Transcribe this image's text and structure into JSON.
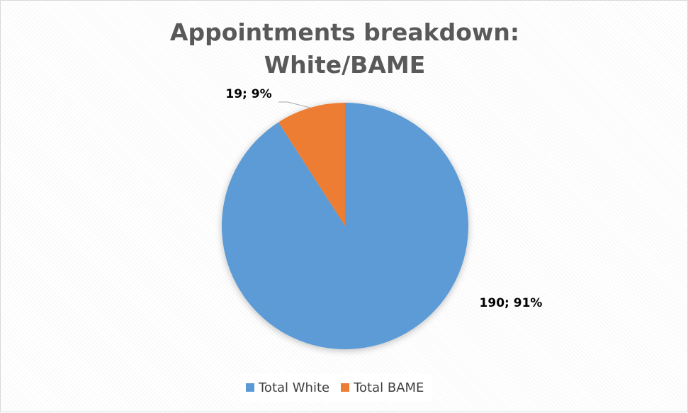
{
  "chart_data": {
    "type": "pie",
    "title": "Appointments breakdown: White/BAME",
    "title_lines": [
      "Appointments breakdown:",
      "White/BAME"
    ],
    "slices": [
      {
        "name": "Total White",
        "value": 190,
        "percent": 91,
        "label": "190; 91%",
        "color": "#5b9bd5"
      },
      {
        "name": "Total BAME",
        "value": 19,
        "percent": 9,
        "label": "19; 9%",
        "color": "#ed7d31"
      }
    ],
    "legend": "bottom",
    "data_labels": true
  }
}
